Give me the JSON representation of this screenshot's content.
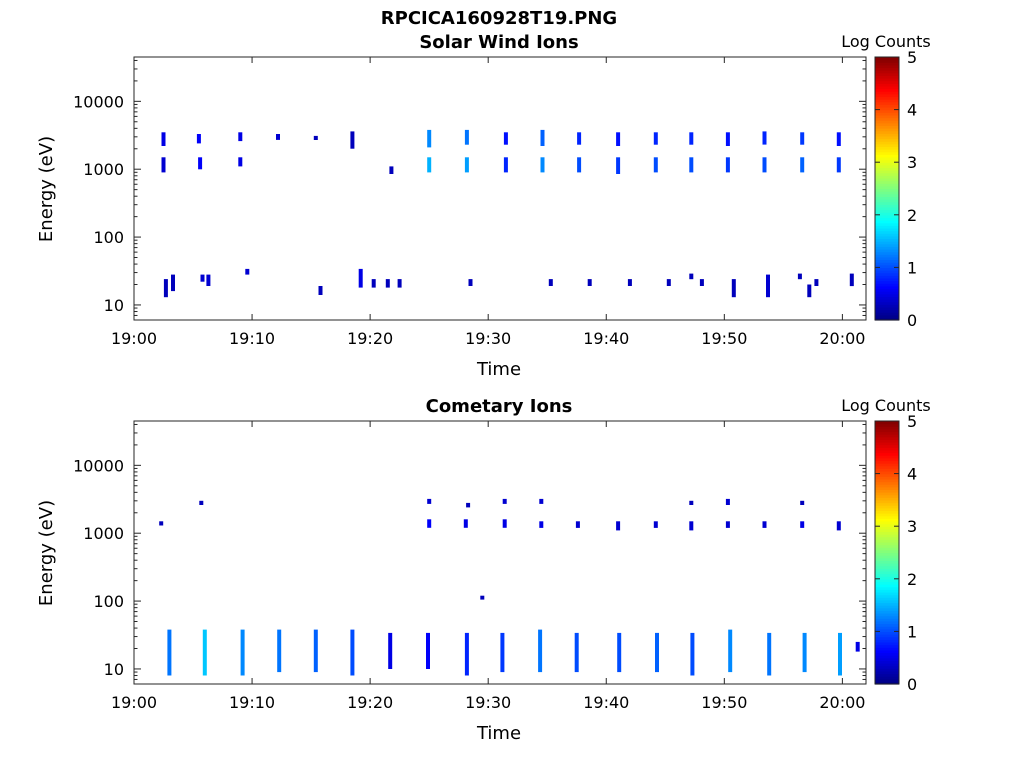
{
  "figure": {
    "title": "RPCICA160928T19.PNG"
  },
  "colormap": [
    "#00007f",
    "#0000ff",
    "#007fff",
    "#00ffff",
    "#7fff7f",
    "#ffff00",
    "#ff7f00",
    "#ff0000",
    "#7f0000"
  ],
  "chart_data": [
    {
      "type": "heatmap",
      "title": "Solar Wind Ions",
      "xlabel": "Time",
      "ylabel": "Energy (eV)",
      "x_ticks": [
        "19:00",
        "19:10",
        "19:20",
        "19:30",
        "19:40",
        "19:50",
        "20:00"
      ],
      "x_range_min": [
        0,
        62
      ],
      "y_scale": "log",
      "y_ticks": [
        10,
        100,
        1000,
        10000
      ],
      "y_range": [
        6,
        45000
      ],
      "colorbar": {
        "label": "Log Counts",
        "range": [
          0,
          5
        ],
        "ticks": [
          0,
          1,
          2,
          3,
          4,
          5
        ]
      },
      "cells": [
        [
          2.5,
          2200,
          3500,
          0.5
        ],
        [
          2.5,
          900,
          1500,
          0.4
        ],
        [
          2.7,
          13,
          24,
          0.3
        ],
        [
          3.3,
          16,
          28,
          0.3
        ],
        [
          5.5,
          2400,
          3300,
          0.6
        ],
        [
          5.6,
          1000,
          1500,
          0.6
        ],
        [
          5.8,
          22,
          28,
          0.4
        ],
        [
          6.3,
          19,
          28,
          0.4
        ],
        [
          9.0,
          2600,
          3500,
          0.5
        ],
        [
          9.0,
          1100,
          1500,
          0.5
        ],
        [
          9.6,
          28,
          34,
          0.4
        ],
        [
          12.2,
          2700,
          3300,
          0.4
        ],
        [
          15.4,
          2700,
          3100,
          0.3
        ],
        [
          15.8,
          14,
          19,
          0.3
        ],
        [
          18.5,
          2000,
          3600,
          0.3
        ],
        [
          19.2,
          18,
          34,
          0.5
        ],
        [
          20.3,
          18,
          24,
          0.3
        ],
        [
          21.5,
          18,
          24,
          0.3
        ],
        [
          21.8,
          850,
          1100,
          0.3
        ],
        [
          22.5,
          18,
          24,
          0.3
        ],
        [
          25.0,
          2100,
          3800,
          1.3
        ],
        [
          25.0,
          900,
          1500,
          1.5
        ],
        [
          28.2,
          2300,
          3800,
          1.2
        ],
        [
          28.2,
          900,
          1500,
          1.4
        ],
        [
          28.5,
          19,
          24,
          0.3
        ],
        [
          31.5,
          2300,
          3500,
          0.7
        ],
        [
          31.5,
          900,
          1500,
          0.8
        ],
        [
          34.6,
          2200,
          3800,
          1.1
        ],
        [
          34.6,
          900,
          1500,
          1.3
        ],
        [
          35.3,
          19,
          24,
          0.3
        ],
        [
          37.7,
          2300,
          3500,
          0.8
        ],
        [
          37.7,
          900,
          1500,
          1.0
        ],
        [
          38.6,
          19,
          24,
          0.3
        ],
        [
          41.0,
          2200,
          3500,
          0.7
        ],
        [
          41.0,
          850,
          1500,
          0.9
        ],
        [
          42.0,
          19,
          24,
          0.3
        ],
        [
          44.2,
          2300,
          3500,
          0.8
        ],
        [
          44.2,
          900,
          1500,
          1.0
        ],
        [
          45.3,
          19,
          24,
          0.3
        ],
        [
          47.2,
          2300,
          3500,
          0.8
        ],
        [
          47.2,
          900,
          1500,
          1.0
        ],
        [
          47.2,
          24,
          29,
          0.3
        ],
        [
          48.1,
          19,
          24,
          0.3
        ],
        [
          50.3,
          2200,
          3500,
          0.7
        ],
        [
          50.3,
          900,
          1500,
          0.9
        ],
        [
          50.8,
          13,
          24,
          0.3
        ],
        [
          53.4,
          2300,
          3600,
          0.8
        ],
        [
          53.4,
          900,
          1500,
          1.0
        ],
        [
          53.7,
          13,
          28,
          0.4
        ],
        [
          56.6,
          2300,
          3500,
          0.9
        ],
        [
          56.6,
          900,
          1500,
          1.1
        ],
        [
          56.4,
          24,
          29,
          0.3
        ],
        [
          57.2,
          13,
          20,
          0.3
        ],
        [
          57.8,
          19,
          24,
          0.3
        ],
        [
          59.7,
          2200,
          3500,
          0.7
        ],
        [
          59.7,
          900,
          1500,
          0.9
        ],
        [
          60.8,
          19,
          29,
          0.3
        ]
      ]
    },
    {
      "type": "heatmap",
      "title": "Cometary Ions",
      "xlabel": "Time",
      "ylabel": "Energy (eV)",
      "x_ticks": [
        "19:00",
        "19:10",
        "19:20",
        "19:30",
        "19:40",
        "19:50",
        "20:00"
      ],
      "x_range_min": [
        0,
        62
      ],
      "y_scale": "log",
      "y_ticks": [
        10,
        100,
        1000,
        10000
      ],
      "y_range": [
        6,
        45000
      ],
      "colorbar": {
        "label": "Log Counts",
        "range": [
          0,
          5
        ],
        "ticks": [
          0,
          1,
          2,
          3,
          4,
          5
        ]
      },
      "cells": [
        [
          2.3,
          1300,
          1500,
          0.3
        ],
        [
          5.7,
          2600,
          3000,
          0.3
        ],
        [
          25.0,
          2700,
          3200,
          0.4
        ],
        [
          25.0,
          1200,
          1600,
          0.6
        ],
        [
          28.1,
          1200,
          1600,
          0.5
        ],
        [
          28.3,
          2400,
          2800,
          0.3
        ],
        [
          29.5,
          105,
          120,
          0.3
        ],
        [
          31.4,
          2700,
          3200,
          0.4
        ],
        [
          31.4,
          1200,
          1600,
          0.5
        ],
        [
          34.5,
          2700,
          3200,
          0.4
        ],
        [
          34.5,
          1200,
          1500,
          0.5
        ],
        [
          37.6,
          1200,
          1500,
          0.4
        ],
        [
          41.0,
          1100,
          1500,
          0.4
        ],
        [
          44.2,
          1200,
          1500,
          0.4
        ],
        [
          47.2,
          2600,
          3000,
          0.3
        ],
        [
          47.2,
          1100,
          1500,
          0.4
        ],
        [
          50.3,
          2600,
          3200,
          0.4
        ],
        [
          50.3,
          1200,
          1500,
          0.4
        ],
        [
          53.4,
          1200,
          1500,
          0.4
        ],
        [
          56.6,
          2600,
          3000,
          0.3
        ],
        [
          56.6,
          1200,
          1500,
          0.5
        ],
        [
          59.7,
          1100,
          1500,
          0.4
        ],
        [
          3.0,
          8,
          38,
          1.2
        ],
        [
          6.0,
          8,
          38,
          1.6
        ],
        [
          9.2,
          8,
          38,
          1.3
        ],
        [
          12.3,
          9,
          38,
          1.2
        ],
        [
          15.4,
          9,
          38,
          1.1
        ],
        [
          18.5,
          8,
          38,
          1.0
        ],
        [
          21.7,
          10,
          34,
          0.5
        ],
        [
          24.9,
          10,
          34,
          0.6
        ],
        [
          28.2,
          8,
          34,
          0.8
        ],
        [
          31.2,
          9,
          34,
          0.9
        ],
        [
          34.4,
          9,
          38,
          1.2
        ],
        [
          37.5,
          9,
          34,
          1.0
        ],
        [
          41.1,
          9,
          34,
          1.0
        ],
        [
          44.3,
          9,
          34,
          1.1
        ],
        [
          47.3,
          8,
          34,
          1.0
        ],
        [
          50.5,
          9,
          38,
          1.3
        ],
        [
          53.8,
          8,
          34,
          1.2
        ],
        [
          56.8,
          9,
          34,
          1.3
        ],
        [
          59.8,
          8,
          34,
          1.4
        ],
        [
          61.3,
          18,
          25,
          0.5
        ]
      ]
    }
  ]
}
